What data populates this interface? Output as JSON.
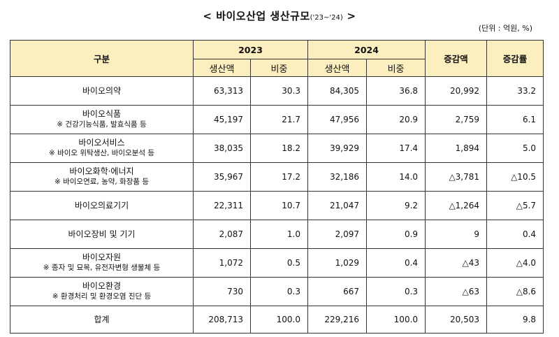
{
  "header": {
    "title": "< 바이오산업 생산규모",
    "title_sub": "('23~'24)",
    "title_end": ">",
    "unit": "(단위 : 억원, %)"
  },
  "table": {
    "col_category": "구분",
    "year_a": "2023",
    "year_b": "2024",
    "col_production": "생산액",
    "col_share": "비중",
    "col_change_amount": "증감액",
    "col_change_rate": "증감률",
    "rows": [
      {
        "name": "바이오의약",
        "note": "",
        "prod23": "63,313",
        "share23": "30.3",
        "prod24": "84,305",
        "share24": "36.8",
        "change": "20,992",
        "rate": "33.2"
      },
      {
        "name": "바이오식품",
        "note": "※ 건강기능식품, 발효식품 등",
        "prod23": "45,197",
        "share23": "21.7",
        "prod24": "47,956",
        "share24": "20.9",
        "change": "2,759",
        "rate": "6.1"
      },
      {
        "name": "바이오서비스",
        "note": "※ 바이오 위탁생산, 바이오분석 등",
        "prod23": "38,035",
        "share23": "18.2",
        "prod24": "39,929",
        "share24": "17.4",
        "change": "1,894",
        "rate": "5.0"
      },
      {
        "name": "바이오화학·에너지",
        "note": "※ 바이오연료, 농약, 화장품 등",
        "prod23": "35,967",
        "share23": "17.2",
        "prod24": "32,186",
        "share24": "14.0",
        "change": "△3,781",
        "rate": "△10.5"
      },
      {
        "name": "바이오의료기기",
        "note": "",
        "prod23": "22,311",
        "share23": "10.7",
        "prod24": "21,047",
        "share24": "9.2",
        "change": "△1,264",
        "rate": "△5.7"
      },
      {
        "name": "바이오장비 및 기기",
        "note": "",
        "prod23": "2,087",
        "share23": "1.0",
        "prod24": "2,097",
        "share24": "0.9",
        "change": "9",
        "rate": "0.4"
      },
      {
        "name": "바이오자원",
        "note": "※ 종자 및 묘목, 유전자변형 생물체 등",
        "prod23": "1,072",
        "share23": "0.5",
        "prod24": "1,029",
        "share24": "0.4",
        "change": "△43",
        "rate": "△4.0"
      },
      {
        "name": "바이오환경",
        "note": "※ 환경처리 및 환경오염 진단 등",
        "prod23": "730",
        "share23": "0.3",
        "prod24": "667",
        "share24": "0.3",
        "change": "△63",
        "rate": "△8.6"
      }
    ],
    "total": {
      "name": "합계",
      "prod23": "208,713",
      "share23": "100.0",
      "prod24": "229,216",
      "share24": "100.0",
      "change": "20,503",
      "rate": "9.8"
    }
  },
  "colors": {
    "header_bg": "#fbeebf",
    "border": "#333333"
  }
}
